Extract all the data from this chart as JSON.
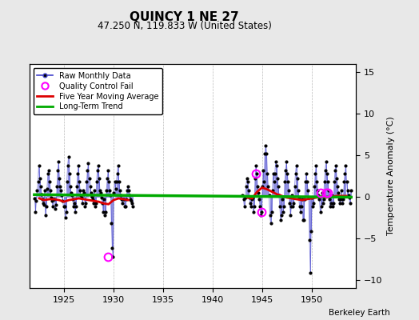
{
  "title": "QUINCY 1 NE 27",
  "subtitle": "47.250 N, 119.833 W (United States)",
  "ylabel": "Temperature Anomaly (°C)",
  "credit": "Berkeley Earth",
  "xlim": [
    1921.5,
    1954.5
  ],
  "ylim": [
    -11.0,
    16.0
  ],
  "yticks": [
    -10,
    -5,
    0,
    5,
    10,
    15
  ],
  "xticks": [
    1925,
    1930,
    1935,
    1940,
    1945,
    1950
  ],
  "background_color": "#e8e8e8",
  "plot_background": "#ffffff",
  "raw_color": "#4444cc",
  "raw_line_alpha": 0.6,
  "dot_color": "#000000",
  "ma_color": "#dd0000",
  "trend_color": "#00aa00",
  "qc_color": "#ff00ff",
  "raw_segment1_years": [
    1922.042,
    1922.125,
    1922.208,
    1922.292,
    1922.375,
    1922.458,
    1922.542,
    1922.625,
    1922.708,
    1922.792,
    1922.875,
    1922.958,
    1923.042,
    1923.125,
    1923.208,
    1923.292,
    1923.375,
    1923.458,
    1923.542,
    1923.625,
    1923.708,
    1923.792,
    1923.875,
    1923.958,
    1924.042,
    1924.125,
    1924.208,
    1924.292,
    1924.375,
    1924.458,
    1924.542,
    1924.625,
    1924.708,
    1924.792,
    1924.875,
    1924.958,
    1925.042,
    1925.125,
    1925.208,
    1925.292,
    1925.375,
    1925.458,
    1925.542,
    1925.625,
    1925.708,
    1925.792,
    1925.875,
    1925.958,
    1926.042,
    1926.125,
    1926.208,
    1926.292,
    1926.375,
    1926.458,
    1926.542,
    1926.625,
    1926.708,
    1926.792,
    1926.875,
    1926.958,
    1927.042,
    1927.125,
    1927.208,
    1927.292,
    1927.375,
    1927.458,
    1927.542,
    1927.625,
    1927.708,
    1927.792,
    1927.875,
    1927.958,
    1928.042,
    1928.125,
    1928.208,
    1928.292,
    1928.375,
    1928.458,
    1928.542,
    1928.625,
    1928.708,
    1928.792,
    1928.875,
    1928.958,
    1929.042,
    1929.125,
    1929.208,
    1929.292,
    1929.375,
    1929.458,
    1929.542,
    1929.625,
    1929.708,
    1929.792,
    1929.875,
    1929.958,
    1930.042,
    1930.125,
    1930.208,
    1930.292,
    1930.375,
    1930.458,
    1930.542,
    1930.625,
    1930.708,
    1930.792,
    1930.875,
    1930.958,
    1931.042,
    1931.125,
    1931.208,
    1931.292,
    1931.375,
    1931.458,
    1931.542,
    1931.625,
    1931.708,
    1931.792,
    1931.875,
    1931.958
  ],
  "raw_segment1_vals": [
    -0.2,
    -1.8,
    -0.5,
    0.8,
    1.8,
    3.8,
    2.2,
    1.2,
    0.3,
    -0.3,
    -0.8,
    -1.0,
    0.8,
    -2.2,
    -1.2,
    1.0,
    2.8,
    3.2,
    1.8,
    0.8,
    -0.1,
    -0.5,
    -1.2,
    -0.3,
    -0.3,
    -1.5,
    -1.0,
    1.2,
    3.2,
    4.2,
    2.2,
    1.2,
    0.8,
    0.2,
    -0.5,
    -1.2,
    -1.2,
    -2.5,
    -1.8,
    1.8,
    3.8,
    4.8,
    2.8,
    1.2,
    0.5,
    0.2,
    -0.3,
    -1.2,
    -0.8,
    -1.8,
    -1.2,
    1.2,
    2.8,
    3.8,
    1.8,
    0.8,
    0.2,
    -0.1,
    -0.8,
    0.8,
    0.5,
    -1.2,
    -0.8,
    1.8,
    3.2,
    4.0,
    2.2,
    1.2,
    0.5,
    0.0,
    -0.3,
    -0.8,
    0.8,
    -1.2,
    -0.8,
    1.8,
    3.2,
    3.8,
    2.2,
    0.8,
    0.5,
    -0.1,
    -0.8,
    -1.8,
    -0.3,
    -2.2,
    -1.8,
    0.8,
    2.2,
    3.2,
    1.8,
    0.8,
    0.2,
    -3.2,
    -6.2,
    -7.2,
    0.5,
    1.8,
    1.0,
    1.8,
    2.8,
    3.8,
    1.8,
    0.8,
    0.2,
    -0.3,
    -0.8,
    -0.3,
    -0.3,
    -1.2,
    -1.2,
    -0.3,
    0.8,
    1.2,
    0.8,
    0.2,
    -0.3,
    -0.5,
    -0.8,
    -1.2
  ],
  "raw_segment2_years": [
    1943.042,
    1943.125,
    1943.208,
    1943.292,
    1943.375,
    1943.458,
    1943.542,
    1943.625,
    1943.708,
    1943.792,
    1943.875,
    1943.958,
    1944.042,
    1944.125,
    1944.208,
    1944.292,
    1944.375,
    1944.458,
    1944.542,
    1944.625,
    1944.708,
    1944.792,
    1944.875,
    1944.958,
    1945.042,
    1945.125,
    1945.208,
    1945.292,
    1945.375,
    1945.458,
    1945.542,
    1945.625,
    1945.708,
    1945.792,
    1945.875,
    1945.958,
    1946.042,
    1946.125,
    1946.208,
    1946.292,
    1946.375,
    1946.458,
    1946.542,
    1946.625,
    1946.708,
    1946.792,
    1946.875,
    1946.958,
    1947.042,
    1947.125,
    1947.208,
    1947.292,
    1947.375,
    1947.458,
    1947.542,
    1947.625,
    1947.708,
    1947.792,
    1947.875,
    1947.958,
    1948.042,
    1948.125,
    1948.208,
    1948.292,
    1948.375,
    1948.458,
    1948.542,
    1948.625,
    1948.708,
    1948.792,
    1948.875,
    1948.958,
    1949.042,
    1949.125,
    1949.208,
    1949.292,
    1949.375,
    1949.458,
    1949.542,
    1949.625,
    1949.708,
    1949.792,
    1949.875,
    1949.958,
    1950.042,
    1950.125,
    1950.208,
    1950.292,
    1950.375,
    1950.458,
    1950.542,
    1950.625,
    1950.708,
    1950.792,
    1950.875,
    1950.958,
    1951.042,
    1951.125,
    1951.208,
    1951.292,
    1951.375,
    1951.458,
    1951.542,
    1951.625,
    1951.708,
    1951.792,
    1951.875,
    1951.958,
    1952.042,
    1952.125,
    1952.208,
    1952.292,
    1952.375,
    1952.458,
    1952.542,
    1952.625,
    1952.708,
    1952.792,
    1952.875,
    1952.958,
    1953.042,
    1953.125,
    1953.208,
    1953.292,
    1953.375,
    1953.458,
    1953.542,
    1953.625,
    1953.708,
    1953.792,
    1953.875,
    1953.958
  ],
  "raw_segment2_vals": [
    0.2,
    -0.3,
    -1.2,
    -0.1,
    1.2,
    2.2,
    1.8,
    0.8,
    -0.1,
    -0.8,
    -1.2,
    -0.3,
    -0.1,
    -1.8,
    -1.2,
    2.2,
    3.8,
    2.8,
    1.2,
    0.5,
    -0.3,
    -1.2,
    -2.2,
    -1.8,
    1.2,
    3.2,
    1.8,
    5.2,
    6.2,
    5.2,
    2.8,
    1.2,
    0.2,
    -2.2,
    -3.2,
    -1.8,
    0.8,
    2.8,
    1.8,
    2.8,
    4.2,
    3.8,
    2.2,
    1.2,
    0.2,
    -1.2,
    -2.8,
    -2.2,
    -0.3,
    -1.8,
    -1.2,
    1.8,
    3.2,
    4.2,
    2.8,
    1.8,
    0.8,
    -0.8,
    -2.2,
    -1.2,
    0.2,
    -1.2,
    -0.8,
    1.2,
    2.8,
    3.8,
    2.2,
    0.8,
    -0.1,
    -1.2,
    -1.8,
    -1.2,
    -0.3,
    -2.8,
    -2.8,
    -0.3,
    1.8,
    2.8,
    1.8,
    0.8,
    -0.1,
    -5.2,
    -9.2,
    -4.2,
    -0.1,
    -1.2,
    -0.8,
    1.2,
    2.8,
    3.8,
    1.8,
    0.8,
    0.2,
    -0.3,
    -1.8,
    -1.2,
    0.5,
    -0.8,
    -0.3,
    1.8,
    3.2,
    4.2,
    2.8,
    1.8,
    0.8,
    -0.3,
    -1.2,
    -0.8,
    0.2,
    -1.2,
    -0.8,
    1.8,
    3.2,
    3.8,
    2.2,
    1.2,
    0.5,
    -0.3,
    -0.8,
    -0.3,
    0.8,
    -0.8,
    -0.3,
    1.8,
    2.8,
    3.8,
    1.8,
    0.8,
    0.2,
    -0.1,
    -0.8,
    0.8
  ],
  "ma_segment1_years": [
    1922.5,
    1923.0,
    1923.5,
    1924.0,
    1924.5,
    1925.0,
    1925.5,
    1926.0,
    1926.5,
    1927.0,
    1927.5,
    1928.0,
    1928.5,
    1929.0,
    1929.5,
    1930.0,
    1930.5,
    1931.5
  ],
  "ma_segment1_vals": [
    -0.2,
    -0.4,
    -0.3,
    -0.3,
    -0.4,
    -0.6,
    -0.4,
    -0.3,
    -0.2,
    -0.3,
    -0.4,
    -0.5,
    -0.6,
    -0.8,
    -0.9,
    -0.4,
    -0.2,
    -0.4
  ],
  "ma_segment2_years": [
    1943.5,
    1944.0,
    1944.5,
    1945.0,
    1945.5,
    1946.0,
    1946.5,
    1947.0,
    1947.5,
    1948.0,
    1948.5,
    1949.0,
    1949.5,
    1950.0,
    1950.5,
    1951.0,
    1951.5,
    1952.0,
    1952.5,
    1953.5
  ],
  "ma_segment2_vals": [
    -0.1,
    -0.2,
    0.6,
    1.1,
    0.9,
    0.6,
    0.3,
    0.1,
    -0.1,
    -0.2,
    -0.3,
    -0.4,
    -0.3,
    -0.2,
    -0.1,
    0.0,
    -0.1,
    0.0,
    0.1,
    0.1
  ],
  "trend_years": [
    1922.0,
    1954.0
  ],
  "trend_vals": [
    0.25,
    -0.05
  ],
  "qc_years": [
    1929.458,
    1944.375,
    1944.958,
    1950.875,
    1951.458,
    1951.625
  ],
  "qc_vals": [
    -7.2,
    2.8,
    -1.8,
    0.5,
    0.5,
    0.5
  ]
}
